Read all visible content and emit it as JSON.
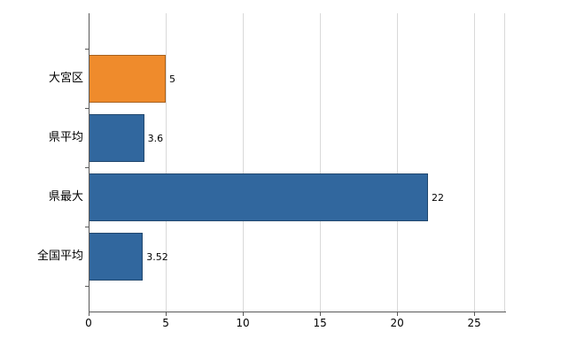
{
  "chart_data": {
    "type": "bar",
    "orientation": "horizontal",
    "title": "",
    "categories": [
      "大宮区",
      "県平均",
      "県最大",
      "全国平均"
    ],
    "values": [
      5,
      3.6,
      22,
      3.52
    ],
    "value_labels": [
      "5",
      "3.6",
      "22",
      "3.52"
    ],
    "bar_colors": [
      "#ef8b2c",
      "#31679e",
      "#31679e",
      "#31679e"
    ],
    "highlight_color": "#ef8b2c",
    "default_bar_color": "#31679e",
    "xlim": [
      0,
      27
    ],
    "x_tick_values": [
      0,
      5,
      10,
      15,
      20,
      25
    ],
    "x_tick_labels": [
      "0",
      "5",
      "10",
      "15",
      "20",
      "25"
    ],
    "grid": true,
    "legend": "none",
    "colors": {
      "grid": "#d9d9d9",
      "axis": "#595959",
      "text": "#000000",
      "background": "#ffffff"
    }
  }
}
